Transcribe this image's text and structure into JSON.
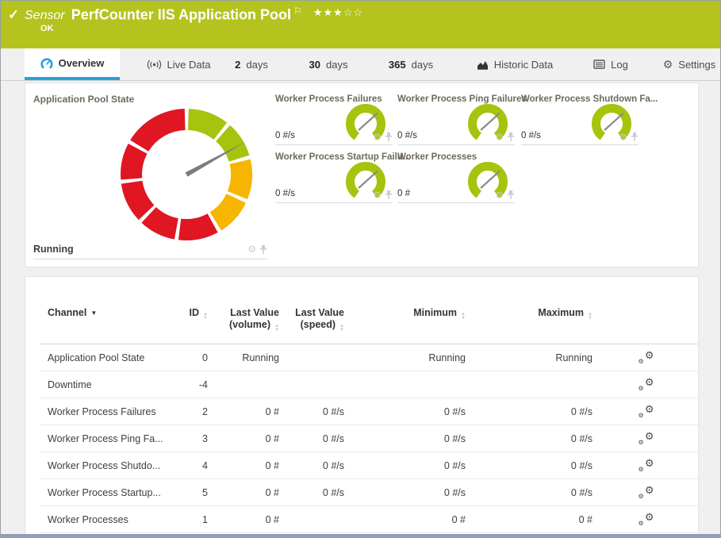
{
  "icons": {
    "check": "✓",
    "flag": "⚐",
    "stars": "★★★☆☆",
    "gear": "⚙",
    "sort_up": "▲",
    "sort_down": "▼",
    "caret_down": "▼"
  },
  "colors": {
    "header_bg": "#b5c31e",
    "tab_active_underline": "#2d9fd8",
    "gauge_green": "#a6c30e",
    "gauge_yellow": "#f7b500",
    "gauge_red": "#e01622",
    "needle_gray": "#7c7c7c",
    "footer_strip": "#8d9fb3"
  },
  "header": {
    "kicker": "Sensor",
    "title": "PerfCounter IIS Application Pool",
    "status": "OK"
  },
  "tabs": [
    {
      "label": "Overview"
    },
    {
      "label": "Live Data"
    },
    {
      "num": "2",
      "label": "days"
    },
    {
      "num": "30",
      "label": "days"
    },
    {
      "num": "365",
      "label": "days"
    },
    {
      "label": "Historic Data"
    },
    {
      "label": "Log"
    },
    {
      "label": "Settings"
    }
  ],
  "main_gauge": {
    "title": "Application Pool State",
    "value": "Running",
    "needle_deg": 61,
    "segments": [
      {
        "start": 2,
        "end": 38,
        "color": "#a6c30e"
      },
      {
        "start": 41.5,
        "end": 73,
        "color": "#a6c30e"
      },
      {
        "start": 76.5,
        "end": 112,
        "color": "#f7b500"
      },
      {
        "start": 115.5,
        "end": 148,
        "color": "#f7b500"
      },
      {
        "start": 151.5,
        "end": 187,
        "color": "#e01622"
      },
      {
        "start": 190.5,
        "end": 223,
        "color": "#e01622"
      },
      {
        "start": 226.5,
        "end": 262,
        "color": "#e01622"
      },
      {
        "start": 265.5,
        "end": 298,
        "color": "#e01622"
      },
      {
        "start": 301.5,
        "end": 358.5,
        "color": "#e01622"
      }
    ]
  },
  "small_gauge_spec": {
    "arc_start": 215,
    "arc_end": 145,
    "color": "#a6c30e",
    "needle_deg": 48
  },
  "small_gauges": [
    {
      "title": "Worker Process Failures",
      "value": "0 #/s"
    },
    {
      "title": "Worker Process Ping Failures",
      "value": "0 #/s"
    },
    {
      "title": "Worker Process Shutdown Fa...",
      "value": "0 #/s"
    },
    {
      "title": "Worker Process Startup Failu...",
      "value": "0 #/s"
    },
    {
      "title": "Worker Processes",
      "value": "0 #"
    }
  ],
  "table": {
    "columns": {
      "channel": "Channel",
      "id": "ID",
      "vol1": "Last Value",
      "vol2": "(volume)",
      "speed1": "Last Value",
      "speed2": "(speed)",
      "min": "Minimum",
      "max": "Maximum"
    },
    "rows": [
      {
        "channel": "Application Pool State",
        "id": "0",
        "volume": "Running",
        "speed": "",
        "min": "Running",
        "max": "Running"
      },
      {
        "channel": "Downtime",
        "id": "-4",
        "volume": "",
        "speed": "",
        "min": "",
        "max": ""
      },
      {
        "channel": "Worker Process Failures",
        "id": "2",
        "volume": "0 #",
        "speed": "0 #/s",
        "min": "0 #/s",
        "max": "0 #/s"
      },
      {
        "channel": "Worker Process Ping Fa...",
        "id": "3",
        "volume": "0 #",
        "speed": "0 #/s",
        "min": "0 #/s",
        "max": "0 #/s"
      },
      {
        "channel": "Worker Process Shutdo...",
        "id": "4",
        "volume": "0 #",
        "speed": "0 #/s",
        "min": "0 #/s",
        "max": "0 #/s"
      },
      {
        "channel": "Worker Process Startup...",
        "id": "5",
        "volume": "0 #",
        "speed": "0 #/s",
        "min": "0 #/s",
        "max": "0 #/s"
      },
      {
        "channel": "Worker Processes",
        "id": "1",
        "volume": "0 #",
        "speed": "",
        "min": "0 #",
        "max": "0 #"
      }
    ]
  }
}
